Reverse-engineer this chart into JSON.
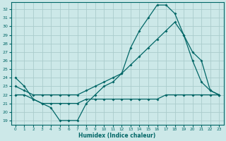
{
  "xlabel": "Humidex (Indice chaleur)",
  "bg_color": "#cce8e8",
  "grid_color": "#aacccc",
  "line_color": "#006666",
  "xlim": [
    -0.5,
    23.5
  ],
  "ylim": [
    18.5,
    32.8
  ],
  "xticks": [
    0,
    1,
    2,
    3,
    4,
    5,
    6,
    7,
    8,
    9,
    10,
    11,
    12,
    13,
    14,
    15,
    16,
    17,
    18,
    19,
    20,
    21,
    22,
    23
  ],
  "yticks": [
    19,
    20,
    21,
    22,
    23,
    24,
    25,
    26,
    27,
    28,
    29,
    30,
    31,
    32
  ],
  "line1_x": [
    0,
    1,
    2,
    3,
    4,
    5,
    6,
    7,
    8,
    9,
    10,
    11,
    12,
    13,
    14,
    15,
    16,
    17,
    18,
    19,
    20,
    21,
    22,
    23
  ],
  "line1_y": [
    24.0,
    23.0,
    21.5,
    21.0,
    20.5,
    19.0,
    19.0,
    19.0,
    21.0,
    22.0,
    23.0,
    23.5,
    24.5,
    27.5,
    29.5,
    31.0,
    32.5,
    32.5,
    31.5,
    29.0,
    26.0,
    23.5,
    22.5,
    22.0
  ],
  "line2_x": [
    0,
    1,
    2,
    3,
    4,
    5,
    6,
    7,
    8,
    9,
    10,
    11,
    12,
    13,
    14,
    15,
    16,
    17,
    18,
    19,
    20,
    21,
    22,
    23
  ],
  "line2_y": [
    23.0,
    22.5,
    22.0,
    22.0,
    22.0,
    22.0,
    22.0,
    22.0,
    22.5,
    23.0,
    23.5,
    24.0,
    24.5,
    25.5,
    26.5,
    27.5,
    28.5,
    29.5,
    30.5,
    29.0,
    27.0,
    26.0,
    22.5,
    22.0
  ],
  "line3_x": [
    0,
    1,
    2,
    3,
    4,
    5,
    6,
    7,
    8,
    9,
    10,
    11,
    12,
    13,
    14,
    15,
    16,
    17,
    18,
    19,
    20,
    21,
    22,
    23
  ],
  "line3_y": [
    22.0,
    22.0,
    21.5,
    21.0,
    21.0,
    21.0,
    21.0,
    21.0,
    21.5,
    21.5,
    21.5,
    21.5,
    21.5,
    21.5,
    21.5,
    21.5,
    21.5,
    22.0,
    22.0,
    22.0,
    22.0,
    22.0,
    22.0,
    22.0
  ]
}
